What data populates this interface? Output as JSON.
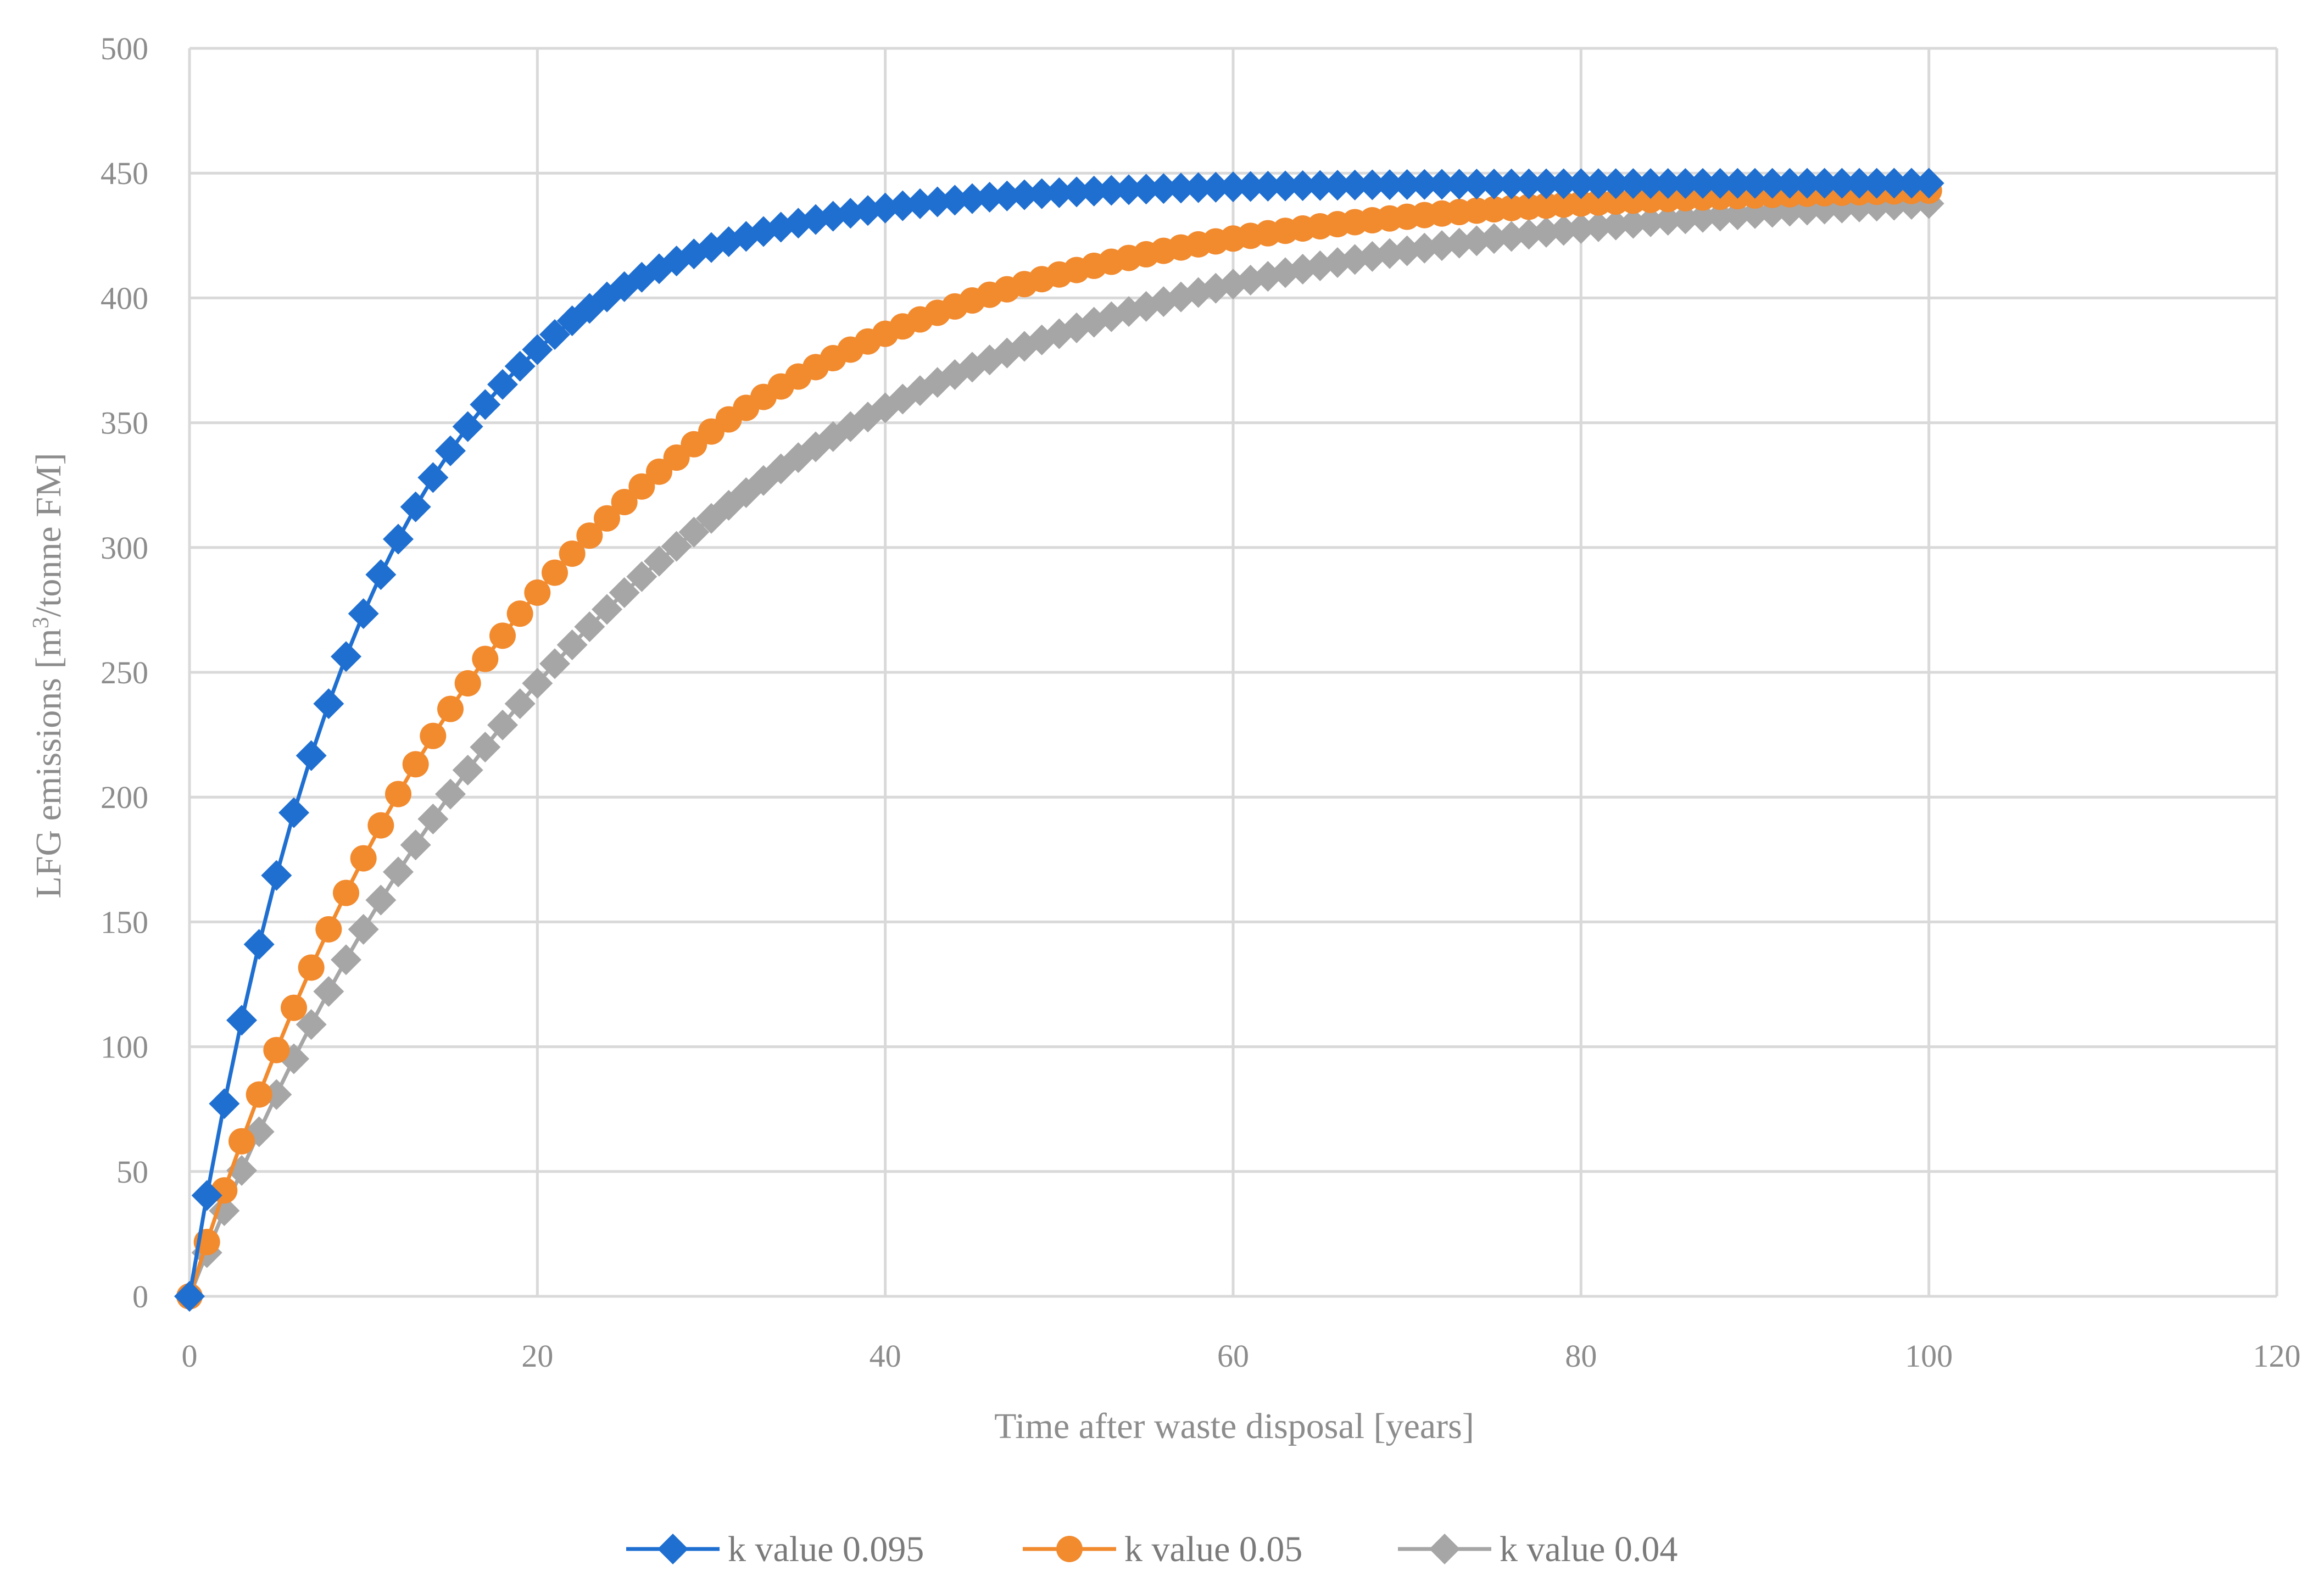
{
  "chart_data": {
    "type": "line",
    "title": "",
    "xlabel": "Time after waste disposal [years]",
    "ylabel_parts": [
      "LFG emissions [m",
      "3",
      "/tonne FM]"
    ],
    "xlim": [
      0,
      120
    ],
    "ylim": [
      0,
      500
    ],
    "xticks": [
      0,
      20,
      40,
      60,
      80,
      100,
      120
    ],
    "yticks": [
      0,
      50,
      100,
      150,
      200,
      250,
      300,
      350,
      400,
      450,
      500
    ],
    "grid": true,
    "legend_position": "bottom",
    "L0": 446,
    "x_start": 0,
    "x_end": 100,
    "series": [
      {
        "name": "k value 0.095",
        "k": 0.095,
        "color": "#1f6fd1",
        "marker": "diamond"
      },
      {
        "name": "k value 0.05",
        "k": 0.05,
        "color": "#f28a2e",
        "marker": "circle"
      },
      {
        "name": "k value 0.04",
        "k": 0.04,
        "color": "#a6a6a6",
        "marker": "diamond"
      }
    ]
  }
}
